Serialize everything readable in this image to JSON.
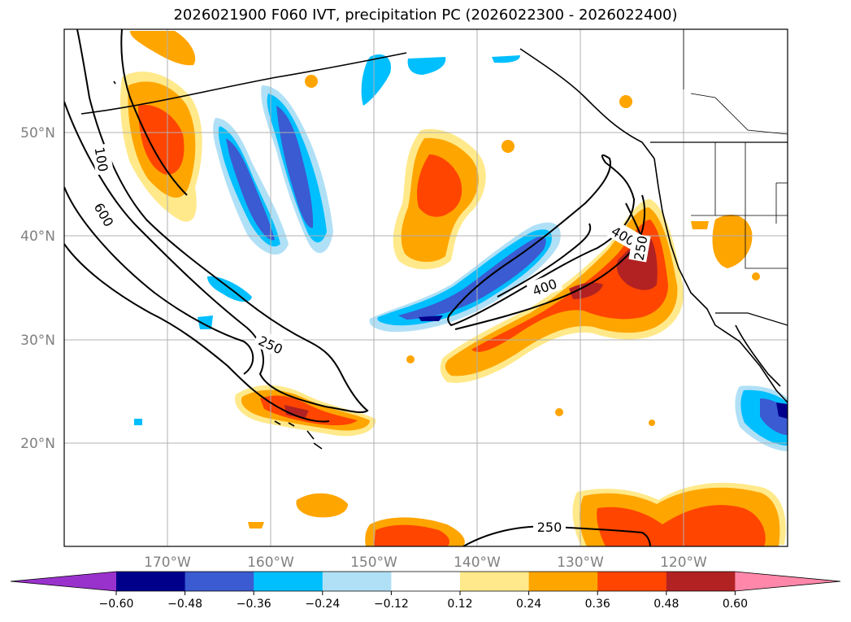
{
  "title": "2026021900 F060 IVT, precipitation PC (2026022300 - 2026022400)",
  "lat_labels": [
    "50°N",
    "40°N",
    "30°N",
    "20°N"
  ],
  "lon_labels": [
    "170°W",
    "160°W",
    "150°W",
    "140°W",
    "130°W",
    "120°W"
  ],
  "colorbar": {
    "ticks": [
      "−0.60",
      "−0.48",
      "−0.36",
      "−0.24",
      "−0.12",
      "0.12",
      "0.24",
      "0.36",
      "0.48",
      "0.60"
    ],
    "colors": [
      "#9932cc",
      "#00008b",
      "#3a5bd1",
      "#00bfff",
      "#b0e0f6",
      "#ffffff",
      "#ffe98a",
      "#ffa500",
      "#ff4500",
      "#b22222",
      "#ff88aa"
    ]
  },
  "contour_labels": [
    "600",
    "100",
    "250",
    "400",
    "400",
    "250",
    "250"
  ],
  "colors": {
    "contour": "#000000",
    "grid": "#b0b0b0",
    "coast": "#000000"
  }
}
